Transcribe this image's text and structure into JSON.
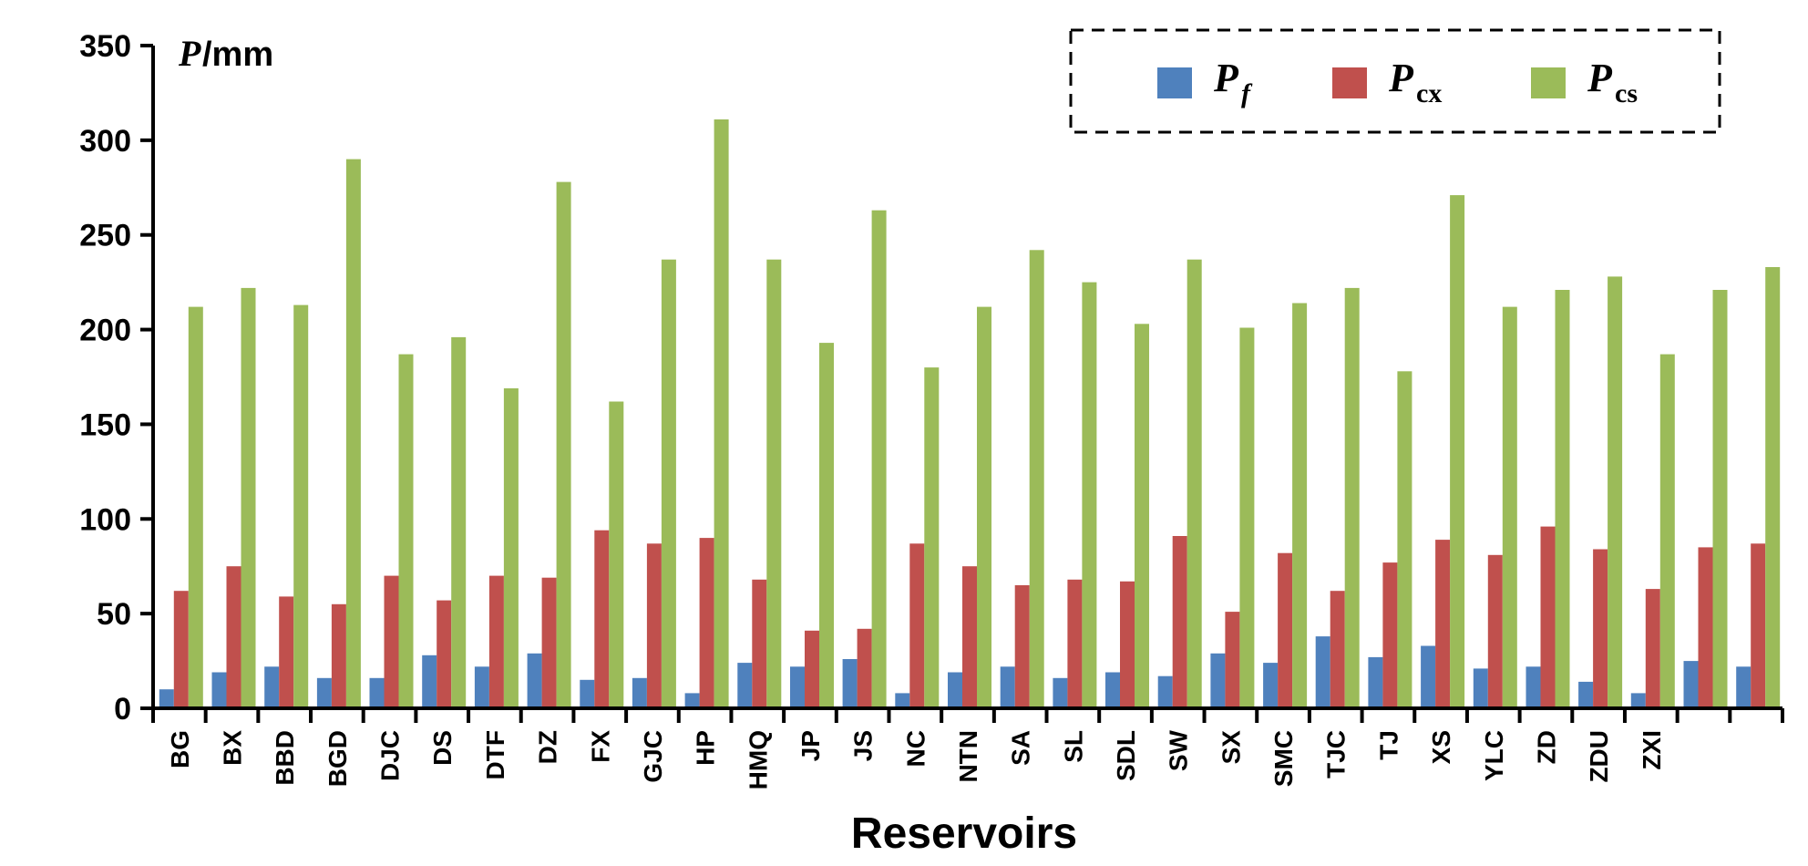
{
  "chart_data": {
    "type": "bar",
    "title": "",
    "xlabel": "Reservoirs",
    "ylabel": {
      "symbol": "P",
      "unit": " /mm"
    },
    "ylim": [
      0,
      350
    ],
    "yticks": [
      0,
      50,
      100,
      150,
      200,
      250,
      300,
      350
    ],
    "grid": false,
    "legend_position": "top-right",
    "colors": {
      "Pf": "#4f81bd",
      "Pcx": "#c0504d",
      "Pcs": "#9bbb59"
    },
    "legend": [
      {
        "key": "Pf",
        "main": "P",
        "sub": "f",
        "sub_italic": true
      },
      {
        "key": "Pcx",
        "main": "P",
        "sub": "cx",
        "sub_italic": false
      },
      {
        "key": "Pcs",
        "main": "P",
        "sub": "cs",
        "sub_italic": false
      }
    ],
    "categories": [
      "BG",
      "BX",
      "BBD",
      "BGD",
      "DJC",
      "DS",
      "DTF",
      "DZ",
      "FX",
      "GJC",
      "HP",
      "HMQ",
      "JP",
      "JS",
      "NC",
      "NTN",
      "SA",
      "SL",
      "SDL",
      "SW",
      "SX",
      "SMC",
      "TJC",
      "TJ",
      "XS",
      "YLC",
      "ZD",
      "ZDU",
      "ZXI",
      "",
      ""
    ],
    "series": [
      {
        "name": "Pf",
        "values": [
          10,
          19,
          22,
          16,
          16,
          28,
          22,
          29,
          15,
          16,
          8,
          24,
          22,
          26,
          8,
          19,
          22,
          16,
          19,
          17,
          29,
          24,
          38,
          27,
          33,
          21,
          22,
          14,
          8,
          25,
          22
        ]
      },
      {
        "name": "Pcx",
        "values": [
          62,
          75,
          59,
          55,
          70,
          57,
          70,
          69,
          94,
          87,
          90,
          68,
          41,
          42,
          87,
          75,
          65,
          68,
          67,
          91,
          51,
          82,
          62,
          77,
          89,
          81,
          96,
          84,
          63,
          85,
          87
        ]
      },
      {
        "name": "Pcs",
        "values": [
          212,
          222,
          213,
          290,
          187,
          196,
          169,
          278,
          162,
          237,
          311,
          237,
          193,
          263,
          180,
          212,
          242,
          225,
          203,
          237,
          201,
          214,
          222,
          178,
          271,
          212,
          221,
          228,
          187,
          221,
          233
        ]
      }
    ]
  }
}
